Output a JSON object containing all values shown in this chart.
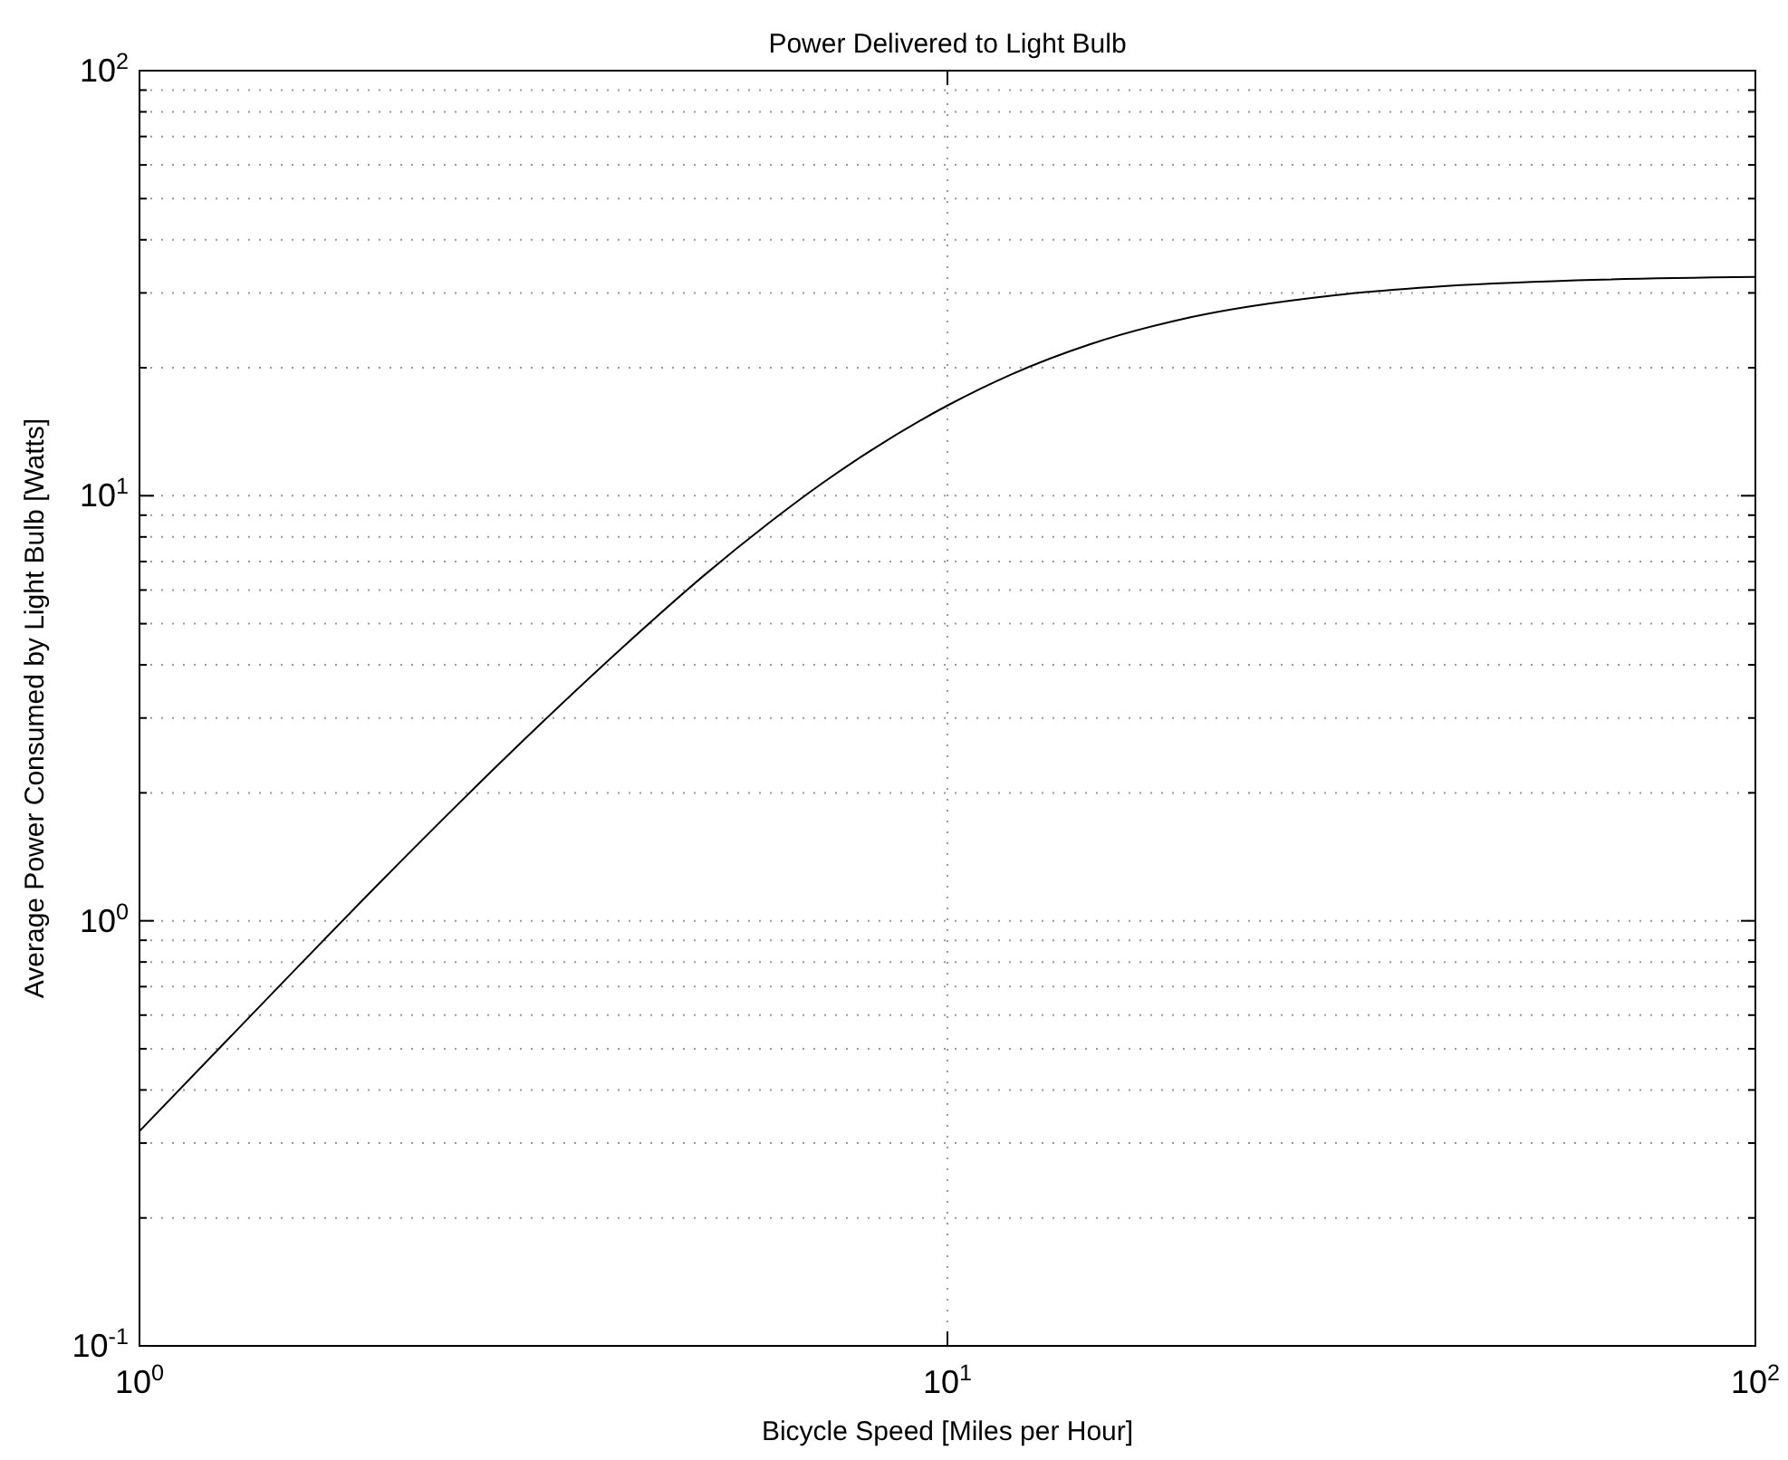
{
  "chart_data": {
    "type": "line",
    "title": "Power Delivered to Light Bulb",
    "xlabel": "Bicycle Speed  [Miles per Hour]",
    "ylabel": "Average Power Consumed by Light Bulb  [Watts]",
    "x": [
      1,
      1.5,
      2,
      3,
      4,
      5,
      6,
      7,
      8,
      10,
      12,
      15,
      20,
      30,
      40,
      60,
      100
    ],
    "series": [
      {
        "color": "#000000",
        "values": [
          0.32,
          0.712,
          1.25,
          2.68,
          4.47,
          6.5,
          8.6,
          10.7,
          12.7,
          16.3,
          19.3,
          22.7,
          26.3,
          29.6,
          31.0,
          32.1,
          32.7
        ]
      }
    ],
    "log": "xy",
    "xlim": [
      1,
      100
    ],
    "ylim": [
      0.1,
      100
    ],
    "xticks": [
      {
        "value": 1,
        "label": "10$^{0}$"
      },
      {
        "value": 10,
        "label": "10$^{1}$"
      },
      {
        "value": 100,
        "label": "10$^{2}$"
      }
    ],
    "yticks": [
      {
        "value": 0.1,
        "label": "10$^{-1}$"
      },
      {
        "value": 0.2,
        "label": null
      },
      {
        "value": 0.3,
        "label": null
      },
      {
        "value": 0.4,
        "label": null
      },
      {
        "value": 0.5,
        "label": null
      },
      {
        "value": 0.6,
        "label": null
      },
      {
        "value": 0.7,
        "label": null
      },
      {
        "value": 0.8,
        "label": null
      },
      {
        "value": 0.9,
        "label": null
      },
      {
        "value": 1,
        "label": "10$^{0}$"
      },
      {
        "value": 2,
        "label": null
      },
      {
        "value": 3,
        "label": null
      },
      {
        "value": 4,
        "label": null
      },
      {
        "value": 5,
        "label": null
      },
      {
        "value": 6,
        "label": null
      },
      {
        "value": 7,
        "label": null
      },
      {
        "value": 8,
        "label": null
      },
      {
        "value": 9,
        "label": null
      },
      {
        "value": 10,
        "label": "10$^{1}$"
      },
      {
        "value": 20,
        "label": null
      },
      {
        "value": 30,
        "label": null
      },
      {
        "value": 40,
        "label": null
      },
      {
        "value": 50,
        "label": null
      },
      {
        "value": 60,
        "label": null
      },
      {
        "value": 70,
        "label": null
      },
      {
        "value": 80,
        "label": null
      },
      {
        "value": 90,
        "label": null
      },
      {
        "value": 100,
        "label": "10$^{2}$"
      }
    ],
    "grid": true,
    "marker": "none",
    "line_style": "solid"
  }
}
